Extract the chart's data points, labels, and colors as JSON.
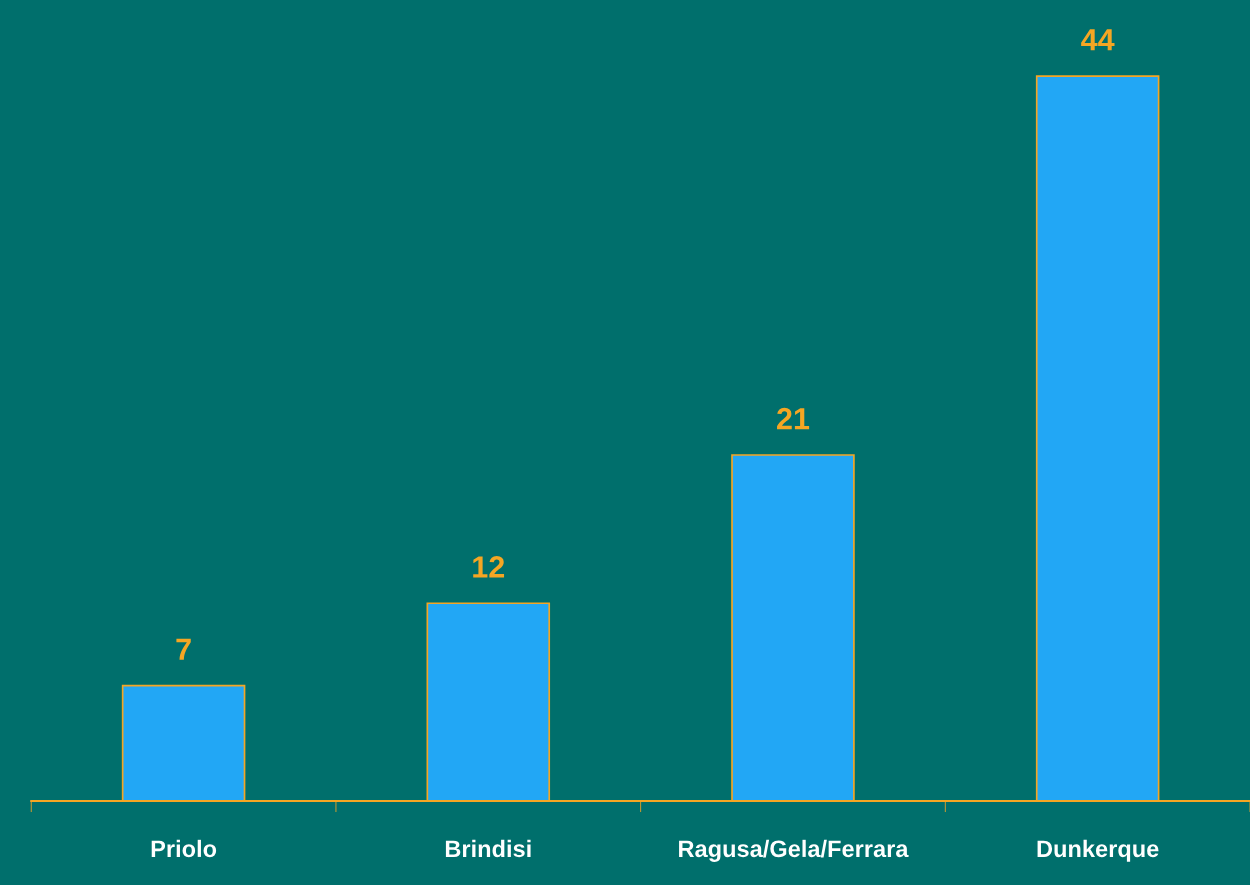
{
  "chart_data": {
    "type": "bar",
    "categories": [
      "Priolo",
      "Brindisi",
      "Ragusa/Gela/Ferrara",
      "Dunkerque"
    ],
    "values": [
      7,
      12,
      21,
      44
    ],
    "color": "#22a7f5",
    "data_labels": true,
    "tick_labels": "x"
  }
}
